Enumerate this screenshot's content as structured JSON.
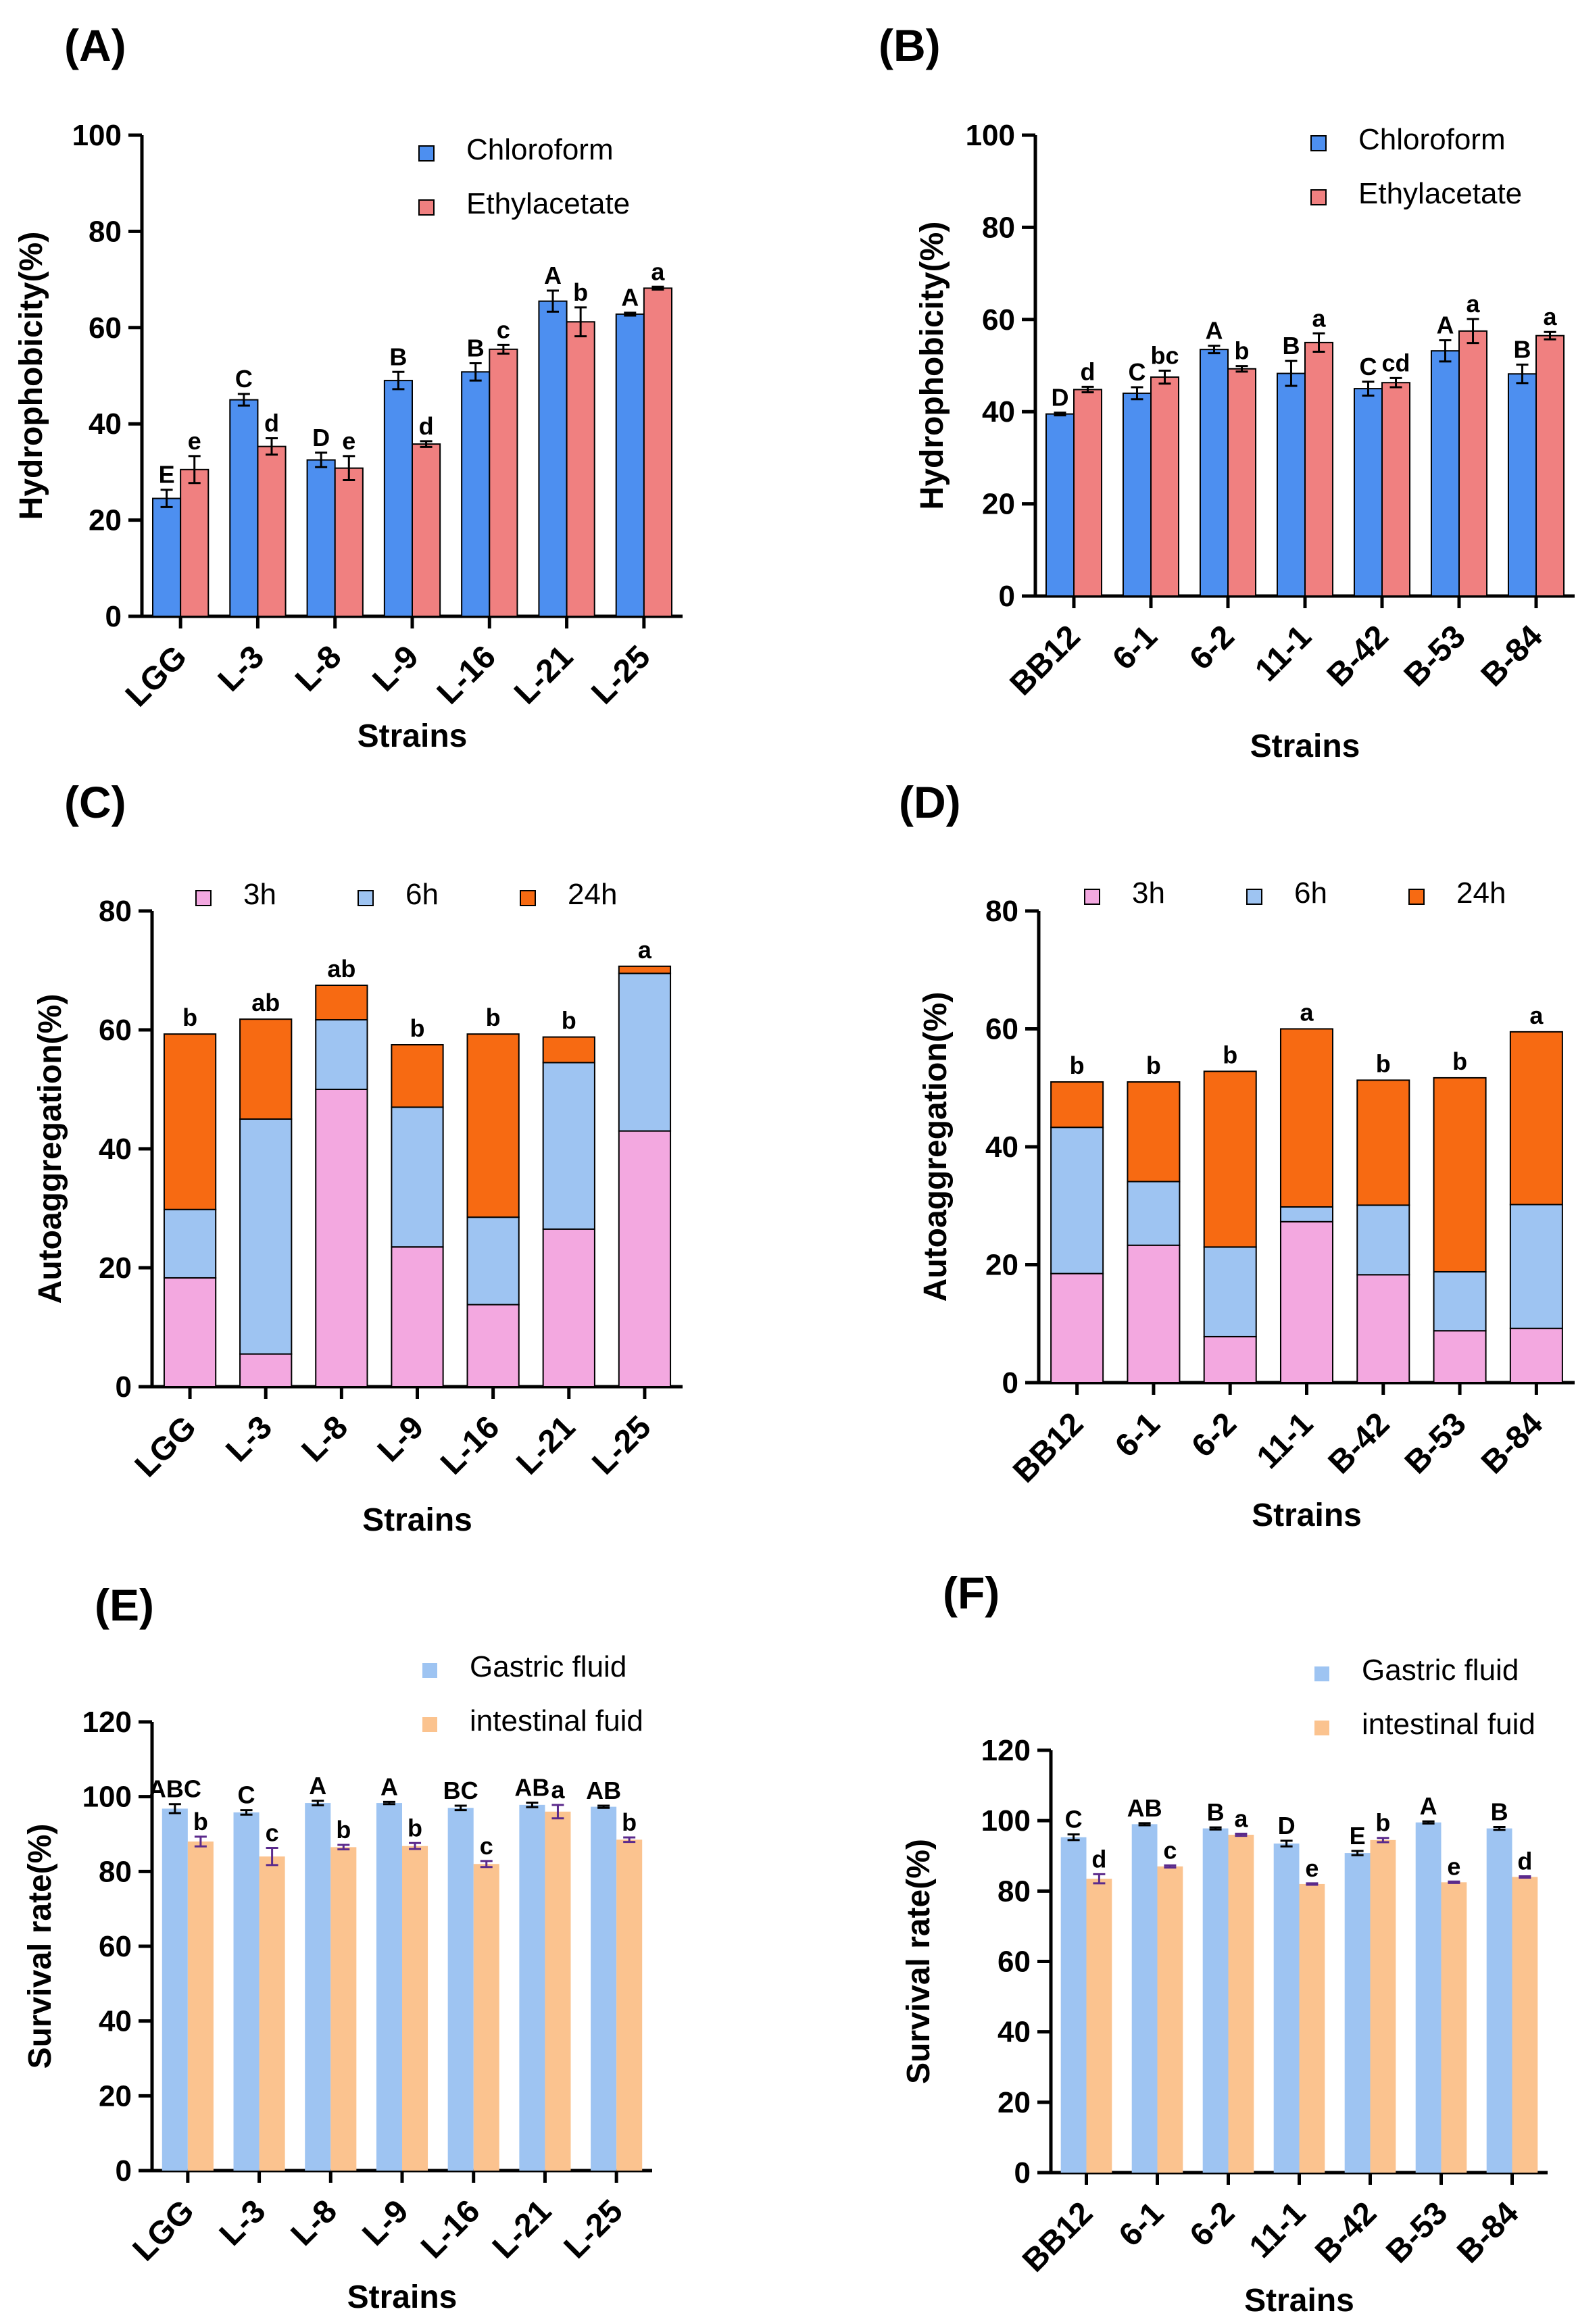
{
  "chart_data": [
    {
      "panel": "(A)",
      "type": "bar",
      "stacked": false,
      "categories": [
        "LGG",
        "L-3",
        "L-8",
        "L-9",
        "L-16",
        "L-21",
        "L-25"
      ],
      "series": [
        {
          "name": "Chloroform",
          "color": "#4d8ff0",
          "values": [
            24.5,
            45,
            32.5,
            49,
            50.8,
            65.5,
            62.8
          ],
          "errors": [
            1.8,
            1.2,
            1.5,
            1.8,
            1.8,
            2.2,
            0.3
          ],
          "letters": [
            "E",
            "C",
            "D",
            "B",
            "B",
            "A",
            "A"
          ]
        },
        {
          "name": "Ethylacetate",
          "color": "#f08080",
          "values": [
            30.5,
            35.3,
            30.8,
            35.8,
            55.5,
            61.2,
            68.2
          ],
          "errors": [
            2.8,
            1.7,
            2.5,
            0.6,
            0.9,
            3,
            0.3
          ],
          "letters": [
            "e",
            "d",
            "e",
            "d",
            "c",
            "b",
            "a"
          ]
        }
      ],
      "xlabel": "Strains",
      "ylabel": "Hydrophobicity(%)",
      "ylim": [
        0,
        100
      ],
      "yticks": [
        0,
        20,
        40,
        60,
        80,
        100
      ],
      "legend_position": "top-right"
    },
    {
      "panel": "(B)",
      "type": "bar",
      "stacked": false,
      "categories": [
        "BB12",
        "6-1",
        "6-2",
        "11-1",
        "B-42",
        "B-53",
        "B-84"
      ],
      "series": [
        {
          "name": "Chloroform",
          "color": "#4d8ff0",
          "values": [
            39.5,
            44,
            53.5,
            48.3,
            45,
            53.2,
            48.2
          ],
          "errors": [
            0.3,
            1.3,
            0.8,
            2.7,
            1.5,
            2.3,
            2
          ],
          "letters": [
            "D",
            "C",
            "A",
            "B",
            "C",
            "A",
            "B"
          ]
        },
        {
          "name": "Ethylacetate",
          "color": "#f08080",
          "values": [
            44.8,
            47.5,
            49.3,
            55,
            46.3,
            57.5,
            56.5
          ],
          "errors": [
            0.6,
            1.4,
            0.6,
            2,
            1,
            2.6,
            0.8
          ],
          "letters": [
            "d",
            "bc",
            "b",
            "a",
            "cd",
            "a",
            "a"
          ]
        }
      ],
      "xlabel": "Strains",
      "ylabel": "Hydrophobicity(%)",
      "ylim": [
        0,
        100
      ],
      "yticks": [
        0,
        20,
        40,
        60,
        80,
        100
      ],
      "legend_position": "top-right"
    },
    {
      "panel": "(C)",
      "type": "bar",
      "stacked": true,
      "categories": [
        "LGG",
        "L-3",
        "L-8",
        "L-9",
        "L-16",
        "L-21",
        "L-25"
      ],
      "series": [
        {
          "name": "3h",
          "color": "#f3a8e0",
          "values": [
            18.3,
            5.5,
            50,
            23.5,
            13.8,
            26.5,
            43
          ]
        },
        {
          "name": "6h",
          "color": "#9ec4f2",
          "values": [
            11.5,
            39.5,
            11.7,
            23.5,
            14.7,
            28,
            26.5
          ]
        },
        {
          "name": "24h",
          "color": "#f76a12",
          "values": [
            29.5,
            16.8,
            5.8,
            10.5,
            30.8,
            4.3,
            1.2
          ]
        }
      ],
      "letters": [
        "b",
        "ab",
        "ab",
        "b",
        "b",
        "b",
        "a"
      ],
      "xlabel": "Strains",
      "ylabel": "Autoaggregation(%)",
      "ylim": [
        0,
        80
      ],
      "yticks": [
        0,
        20,
        40,
        60,
        80
      ],
      "legend_position": "top"
    },
    {
      "panel": "(D)",
      "type": "bar",
      "stacked": true,
      "categories": [
        "BB12",
        "6-1",
        "6-2",
        "11-1",
        "B-42",
        "B-53",
        "B-84"
      ],
      "series": [
        {
          "name": "3h",
          "color": "#f3a8e0",
          "values": [
            18.5,
            23.3,
            7.8,
            27.3,
            18.3,
            8.8,
            9.2
          ]
        },
        {
          "name": "6h",
          "color": "#9ec4f2",
          "values": [
            24.8,
            10.8,
            15.2,
            2.5,
            11.8,
            10,
            21
          ]
        },
        {
          "name": "24h",
          "color": "#f76a12",
          "values": [
            7.7,
            16.9,
            29.8,
            30.2,
            21.2,
            32.9,
            29.3
          ]
        }
      ],
      "letters": [
        "b",
        "b",
        "b",
        "a",
        "b",
        "b",
        "a"
      ],
      "xlabel": "Strains",
      "ylabel": "Autoaggregation(%)",
      "ylim": [
        0,
        80
      ],
      "yticks": [
        0,
        20,
        40,
        60,
        80
      ],
      "legend_position": "top"
    },
    {
      "panel": "(E)",
      "type": "bar",
      "stacked": false,
      "categories": [
        "LGG",
        "L-3",
        "L-8",
        "L-9",
        "L-16",
        "L-21",
        "L-25"
      ],
      "series": [
        {
          "name": "Gastric fluid",
          "color": "#9ec4f2",
          "values": [
            96.8,
            95.8,
            98.3,
            98.3,
            97,
            97.8,
            97.3
          ],
          "errors": [
            1.2,
            0.6,
            0.6,
            0.3,
            0.6,
            0.6,
            0.3
          ],
          "letters": [
            "ABC",
            "C",
            "A",
            "A",
            "BC",
            "AB",
            "AB"
          ]
        },
        {
          "name": "intestinal fuid",
          "color": "#fbc38f",
          "values": [
            88,
            84,
            86.5,
            86.8,
            82,
            96,
            88.5
          ],
          "errors": [
            1.3,
            2.3,
            0.6,
            0.8,
            0.8,
            1.8,
            0.6
          ],
          "letters": [
            "b",
            "c",
            "b",
            "b",
            "c",
            "a",
            "b"
          ]
        }
      ],
      "xlabel": "Strains",
      "ylabel": "Survival rate(%)",
      "ylim": [
        0,
        120
      ],
      "yticks": [
        0,
        20,
        40,
        60,
        80,
        100,
        120
      ],
      "legend_position": "top-right"
    },
    {
      "panel": "(F)",
      "type": "bar",
      "stacked": false,
      "categories": [
        "BB12",
        "6-1",
        "6-2",
        "11-1",
        "B-42",
        "B-53",
        "B-84"
      ],
      "series": [
        {
          "name": "Gastric fluid",
          "color": "#9ec4f2",
          "values": [
            95.3,
            99,
            97.8,
            93.5,
            90.8,
            99.5,
            97.8
          ],
          "errors": [
            0.8,
            0.3,
            0.3,
            0.8,
            0.6,
            0.3,
            0.4
          ],
          "letters": [
            "C",
            "AB",
            "B",
            "D",
            "E",
            "A",
            "B"
          ]
        },
        {
          "name": "intestinal fuid",
          "color": "#fbc38f",
          "values": [
            83.5,
            87,
            96,
            82,
            94.5,
            82.5,
            84
          ],
          "errors": [
            1.3,
            0.3,
            0.3,
            0.2,
            0.6,
            0.2,
            0.2
          ],
          "letters": [
            "d",
            "c",
            "a",
            "e",
            "b",
            "e",
            "d"
          ]
        }
      ],
      "xlabel": "Strains",
      "ylabel": "Survival rate(%)",
      "ylim": [
        0,
        120
      ],
      "yticks": [
        0,
        20,
        40,
        60,
        80,
        100,
        120
      ],
      "legend_position": "top-right"
    }
  ]
}
